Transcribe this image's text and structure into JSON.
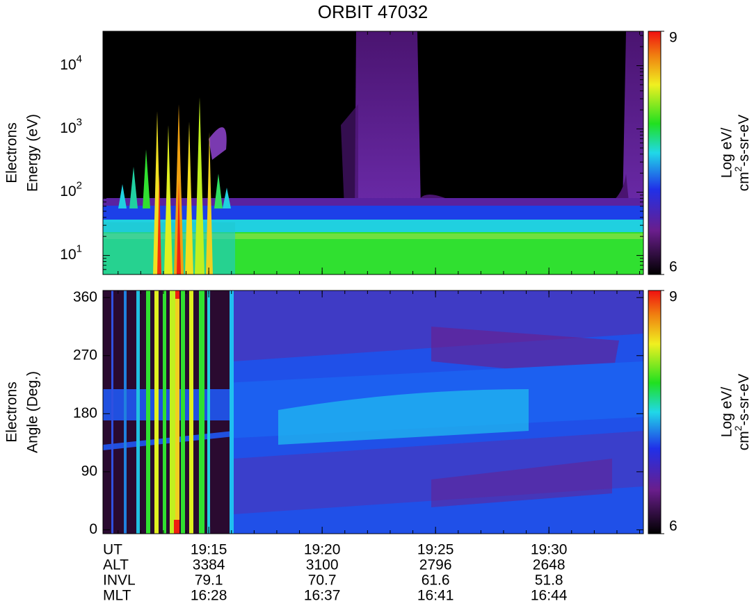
{
  "chart_data": {
    "type": "spectrogram",
    "title": "ORBIT 47032",
    "xlabel": "UT",
    "xlim": [
      "19:10:20",
      "19:34:10"
    ],
    "xticks": [
      "19:15",
      "19:20",
      "19:25",
      "19:30"
    ],
    "ephemeris": [
      {
        "name": "ALT",
        "values": [
          3384,
          3100,
          2796,
          2648
        ]
      },
      {
        "name": "INVL",
        "values": [
          79.1,
          70.7,
          61.6,
          51.8
        ]
      },
      {
        "name": "MLT",
        "values": [
          "16:28",
          "16:37",
          "16:41",
          "16:44"
        ]
      }
    ],
    "clim": [
      6,
      9
    ],
    "cticks": [
      6,
      9
    ],
    "clabel": {
      "line1": "Log eV/",
      "line2": "cm",
      "sup": "2",
      "rest": "-s-sr-eV"
    },
    "panels": [
      {
        "ylabel": [
          "Electrons",
          "Energy (eV)"
        ],
        "log_scale": true,
        "ylim": [
          5,
          35000
        ],
        "yticks": [
          {
            "value": 10,
            "label": "10",
            "sup": "1"
          },
          {
            "value": 100,
            "label": "10",
            "sup": "2"
          },
          {
            "value": 1000,
            "label": "10",
            "sup": "3"
          },
          {
            "value": 10000,
            "label": "10",
            "sup": "4"
          }
        ]
      },
      {
        "ylabel": [
          "Electrons",
          "Angle (Deg.)"
        ],
        "log_scale": false,
        "ylim": [
          -6,
          371
        ],
        "yticks": [
          0,
          90,
          180,
          270,
          360
        ]
      }
    ]
  }
}
